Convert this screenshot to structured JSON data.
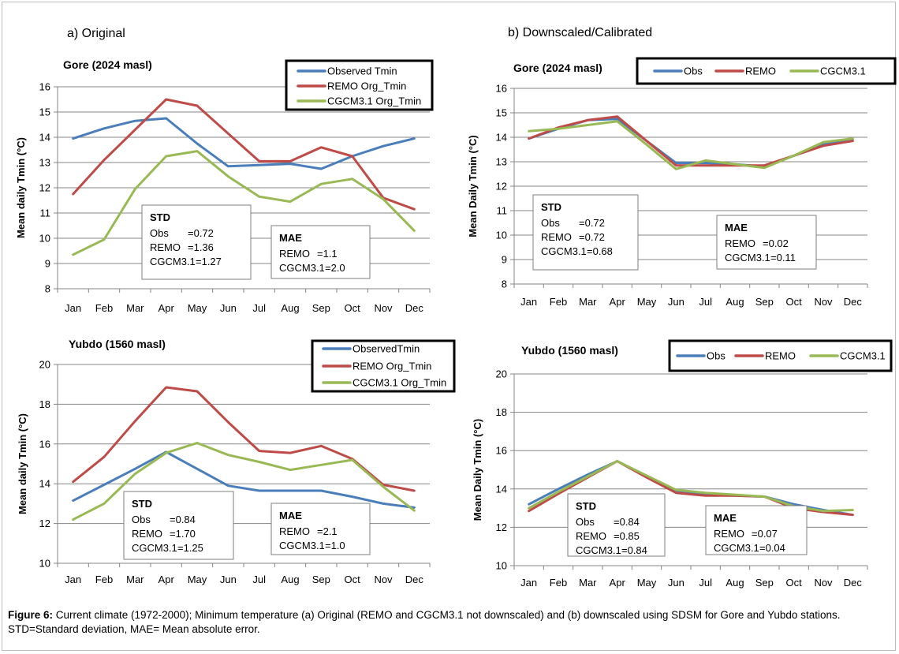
{
  "colors": {
    "obs": "#4a7ebb",
    "remo": "#be4b48",
    "cgcm": "#98b954",
    "grid": "#858585"
  },
  "caption": {
    "label": "Figure 6:",
    "text": " Current climate (1972-2000); Minimum temperature (a) Original (REMO and CGCM3.1 not downscaled) and (b) downscaled using SDSM for Gore and Yubdo stations. STD=Standard deviation, MAE= Mean absolute error."
  },
  "chart_data": [
    {
      "type": "line",
      "panel_label": "a) Original",
      "title": "Gore (2024 masl)",
      "ylabel": "Mean daily Tmin (°C)",
      "categories": [
        "Jan",
        "Feb",
        "Mar",
        "Apr",
        "May",
        "Jun",
        "Jul",
        "Aug",
        "Sep",
        "Oct",
        "Nov",
        "Dec"
      ],
      "ylim": [
        8,
        16
      ],
      "yticks": [
        8,
        9,
        10,
        11,
        12,
        13,
        14,
        15,
        16
      ],
      "grid": true,
      "legend_position": "top-right",
      "legend_layout": "vertical",
      "series": [
        {
          "name": "Observed Tmin",
          "color_key": "obs",
          "values": [
            13.95,
            14.35,
            14.65,
            14.75,
            13.75,
            12.85,
            12.9,
            12.95,
            12.75,
            13.25,
            13.65,
            13.95
          ]
        },
        {
          "name": "REMO Org_Tmin",
          "color_key": "remo",
          "values": [
            11.75,
            13.1,
            14.3,
            15.5,
            15.25,
            14.15,
            13.05,
            13.05,
            13.6,
            13.25,
            11.6,
            11.15
          ]
        },
        {
          "name": "CGCM3.1 Org_Tmin",
          "color_key": "cgcm",
          "values": [
            9.35,
            9.95,
            11.95,
            13.25,
            13.45,
            12.45,
            11.65,
            11.45,
            12.15,
            12.35,
            11.55,
            10.3
          ]
        }
      ],
      "stats": [
        {
          "title": "STD",
          "lines": [
            [
              "Obs",
              "=0.72"
            ],
            [
              "REMO",
              "=1.36"
            ],
            [
              "CGCM3.1",
              "=1.27"
            ]
          ]
        },
        {
          "title": "MAE",
          "lines": [
            [
              "REMO",
              "=1.1"
            ],
            [
              "CGCM3.1",
              "=2.0"
            ]
          ]
        }
      ]
    },
    {
      "type": "line",
      "panel_label": "b) Downscaled/Calibrated",
      "title": "Gore (2024 masl)",
      "ylabel": "Mean Daily Tmin (°C)",
      "categories": [
        "Jan",
        "Feb",
        "Mar",
        "Apr",
        "May",
        "Jun",
        "Jul",
        "Aug",
        "Sep",
        "Oct",
        "Nov",
        "Dec"
      ],
      "ylim": [
        8,
        16
      ],
      "yticks": [
        8,
        9,
        10,
        11,
        12,
        13,
        14,
        15,
        16
      ],
      "grid": true,
      "legend_position": "top-right",
      "legend_layout": "horizontal",
      "series": [
        {
          "name": "Obs",
          "color_key": "obs",
          "values": [
            13.95,
            14.35,
            14.7,
            14.75,
            13.85,
            12.95,
            12.95,
            12.9,
            12.8,
            13.25,
            13.7,
            13.9
          ]
        },
        {
          "name": "REMO",
          "color_key": "remo",
          "values": [
            13.95,
            14.4,
            14.7,
            14.85,
            13.85,
            12.85,
            12.85,
            12.85,
            12.85,
            13.25,
            13.65,
            13.85
          ]
        },
        {
          "name": "CGCM3.1",
          "color_key": "cgcm",
          "values": [
            14.25,
            14.35,
            14.5,
            14.65,
            13.7,
            12.7,
            13.05,
            12.9,
            12.75,
            13.25,
            13.8,
            13.95
          ]
        }
      ],
      "stats": [
        {
          "title": "STD",
          "lines": [
            [
              "Obs",
              "=0.72"
            ],
            [
              "REMO",
              "=0.72"
            ],
            [
              "CGCM3.1",
              "=0.68"
            ]
          ]
        },
        {
          "title": "MAE",
          "lines": [
            [
              "REMO",
              "=0.02"
            ],
            [
              "CGCM3.1",
              "=0.11"
            ]
          ]
        }
      ]
    },
    {
      "type": "line",
      "title": "Yubdo (1560 masl)",
      "ylabel": "Mean daily Tmin (°C)",
      "categories": [
        "Jan",
        "Feb",
        "Mar",
        "Apr",
        "May",
        "Jun",
        "Jul",
        "Aug",
        "Sep",
        "Oct",
        "Nov",
        "Dec"
      ],
      "ylim": [
        10,
        20
      ],
      "yticks": [
        10,
        12,
        14,
        16,
        18,
        20
      ],
      "grid": true,
      "legend_position": "top-right",
      "legend_layout": "vertical",
      "series": [
        {
          "name": "ObservedTmin",
          "color_key": "obs",
          "values": [
            13.15,
            13.95,
            14.75,
            15.6,
            14.75,
            13.9,
            13.65,
            13.65,
            13.65,
            13.35,
            13.0,
            12.8
          ]
        },
        {
          "name": "REMO Org_Tmin",
          "color_key": "remo",
          "values": [
            14.1,
            15.35,
            17.15,
            18.85,
            18.65,
            17.1,
            15.65,
            15.55,
            15.9,
            15.25,
            13.95,
            13.65
          ]
        },
        {
          "name": "CGCM3.1 Org_Tmin",
          "color_key": "cgcm",
          "values": [
            12.2,
            13.0,
            14.5,
            15.55,
            16.05,
            15.45,
            15.1,
            14.7,
            14.95,
            15.2,
            13.85,
            12.65
          ]
        }
      ],
      "stats": [
        {
          "title": "STD",
          "lines": [
            [
              "Obs",
              "=0.84"
            ],
            [
              "REMO",
              "=1.70"
            ],
            [
              "CGCM3.1",
              "=1.25"
            ]
          ]
        },
        {
          "title": "MAE",
          "lines": [
            [
              "REMO",
              "=2.1"
            ],
            [
              "CGCM3.1",
              "=1.0"
            ]
          ]
        }
      ]
    },
    {
      "type": "line",
      "title": "Yubdo (1560 masl)",
      "ylabel": "Mean Daily Tmin (°C)",
      "categories": [
        "Jan",
        "Feb",
        "Mar",
        "Apr",
        "May",
        "Jun",
        "Jul",
        "Aug",
        "Sep",
        "Oct",
        "Nov",
        "Dec"
      ],
      "ylim": [
        10,
        20
      ],
      "yticks": [
        10,
        12,
        14,
        16,
        18,
        20
      ],
      "grid": true,
      "legend_position": "top-right",
      "legend_layout": "horizontal",
      "series": [
        {
          "name": "Obs",
          "color_key": "obs",
          "values": [
            13.2,
            14.0,
            14.75,
            15.45,
            14.65,
            13.85,
            13.7,
            13.65,
            13.6,
            13.2,
            12.9,
            12.65
          ]
        },
        {
          "name": "REMO",
          "color_key": "remo",
          "values": [
            12.85,
            13.75,
            14.6,
            15.45,
            14.6,
            13.8,
            13.65,
            13.65,
            13.6,
            13.0,
            12.8,
            12.65
          ]
        },
        {
          "name": "CGCM3.1",
          "color_key": "cgcm",
          "values": [
            13.0,
            13.85,
            14.65,
            15.45,
            14.7,
            13.95,
            13.8,
            13.7,
            13.6,
            13.1,
            12.85,
            12.9
          ]
        }
      ],
      "stats": [
        {
          "title": "STD",
          "lines": [
            [
              "Obs",
              "=0.84"
            ],
            [
              "REMO",
              "=0.85"
            ],
            [
              "CGCM3.1",
              "=0.84"
            ]
          ]
        },
        {
          "title": "MAE",
          "lines": [
            [
              "REMO",
              "=0.07"
            ],
            [
              "CGCM3.1",
              "=0.04"
            ]
          ]
        }
      ]
    }
  ]
}
